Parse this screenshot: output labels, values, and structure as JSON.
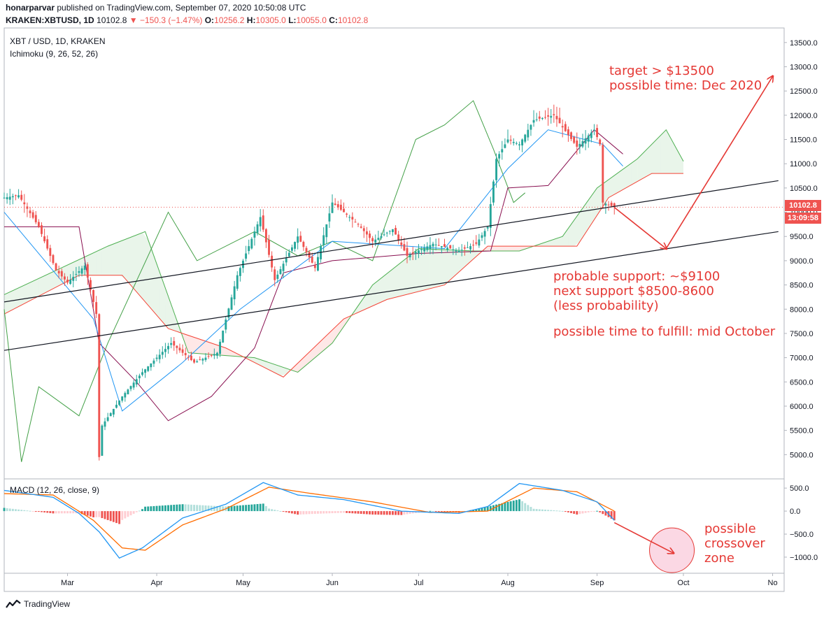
{
  "header": {
    "author": "honarparvar",
    "published": "published on TradingView.com, September 07, 2020 10:50:08 UTC",
    "symbol": "KRAKEN:XBTUSD, 1D",
    "last": "10102.8",
    "change": "▼ −150.3 (−1.47%)",
    "o_label": "O:",
    "o": "10256.2",
    "h_label": "H:",
    "h": "10305.0",
    "l_label": "L:",
    "l": "10055.0",
    "c_label": "C:",
    "c": "10102.8"
  },
  "legend": {
    "pair": "XBT / USD, 1D, KRAKEN",
    "ichimoku": "Ichimoku (9, 26, 52, 26)",
    "macd": "MACD (12, 26, close, 9)"
  },
  "price_badge": "10102.8",
  "time_badge": "13:09:58",
  "footer": {
    "logo_icon": "tradingview-logo-icon",
    "brand": "TradingView"
  },
  "notes": {
    "target_1": "target > $13500",
    "target_2": "possible time: Dec 2020",
    "support_1": "probable support: ~$9100",
    "support_2": "next support $8500-8600",
    "support_3": "(less probability)",
    "time_fulfill": "possible time to fulfill: mid October",
    "crossover_1": "possible",
    "crossover_2": "crossover",
    "crossover_3": "zone"
  },
  "colors": {
    "bull": "#26a69a",
    "bear": "#ef5350",
    "tenkan": "#2196f3",
    "kijun": "#880e4f",
    "chikou": "#43a047",
    "span_a": "#4caf50",
    "span_b": "#f44336",
    "macd": "#2196f3",
    "signal": "#ff6d00",
    "annotation": "#e53935"
  },
  "chart_data": {
    "type": "candlestick",
    "price_axis": {
      "ylim": [
        4500,
        13800
      ],
      "ticks": [
        5000,
        5500,
        6000,
        6500,
        7000,
        7500,
        8000,
        8500,
        9000,
        9500,
        10000,
        10500,
        11000,
        11500,
        12000,
        12500,
        13000,
        13500
      ],
      "tick_labels": [
        "5000.0",
        "5500.0",
        "6000.0",
        "6500.0",
        "7000.0",
        "7500.0",
        "8000.0",
        "8500.0",
        "9000.0",
        "9500.0",
        "10000.0",
        "10500.0",
        "11000.0",
        "11500.0",
        "12000.0",
        "12500.0",
        "13000.0",
        "13500.0"
      ]
    },
    "macd_axis": {
      "ylim": [
        -1350,
        700
      ],
      "ticks": [
        500,
        0,
        -500,
        -1000
      ],
      "tick_labels": [
        "500.0",
        "0.0",
        "−500.0",
        "−1000.0"
      ]
    },
    "x_axis": {
      "start": "2020-02-08",
      "end": "2020-11-05",
      "ticks": [
        {
          "date": "2020-03-01",
          "label": "Mar"
        },
        {
          "date": "2020-04-01",
          "label": "Apr"
        },
        {
          "date": "2020-05-01",
          "label": "May"
        },
        {
          "date": "2020-06-01",
          "label": "Jun"
        },
        {
          "date": "2020-07-01",
          "label": "Jul"
        },
        {
          "date": "2020-08-01",
          "label": "Aug"
        },
        {
          "date": "2020-09-01",
          "label": "Sep"
        },
        {
          "date": "2020-10-01",
          "label": "Oct"
        },
        {
          "date": "2020-11-01",
          "label": "No"
        }
      ]
    },
    "price_keypoints": [
      [
        "2020-02-08",
        10300
      ],
      [
        "2020-02-13",
        10350
      ],
      [
        "2020-02-20",
        9700
      ],
      [
        "2020-02-26",
        8800
      ],
      [
        "2020-03-01",
        8550
      ],
      [
        "2020-03-07",
        8900
      ],
      [
        "2020-03-11",
        7900
      ],
      [
        "2020-03-12",
        4950
      ],
      [
        "2020-03-13",
        5600
      ],
      [
        "2020-03-20",
        6200
      ],
      [
        "2020-03-27",
        6700
      ],
      [
        "2020-04-06",
        7300
      ],
      [
        "2020-04-14",
        6900
      ],
      [
        "2020-04-22",
        7100
      ],
      [
        "2020-04-29",
        8700
      ],
      [
        "2020-05-07",
        9900
      ],
      [
        "2020-05-12",
        8600
      ],
      [
        "2020-05-20",
        9500
      ],
      [
        "2020-05-26",
        8850
      ],
      [
        "2020-06-01",
        10200
      ],
      [
        "2020-06-10",
        9750
      ],
      [
        "2020-06-15",
        9400
      ],
      [
        "2020-06-22",
        9650
      ],
      [
        "2020-06-27",
        9100
      ],
      [
        "2020-07-06",
        9350
      ],
      [
        "2020-07-15",
        9200
      ],
      [
        "2020-07-21",
        9350
      ],
      [
        "2020-07-25",
        9700
      ],
      [
        "2020-07-28",
        11100
      ],
      [
        "2020-08-01",
        11500
      ],
      [
        "2020-08-05",
        11400
      ],
      [
        "2020-08-10",
        11900
      ],
      [
        "2020-08-17",
        12000
      ],
      [
        "2020-08-20",
        11750
      ],
      [
        "2020-08-25",
        11350
      ],
      [
        "2020-08-31",
        11700
      ],
      [
        "2020-09-02",
        11400
      ],
      [
        "2020-09-03",
        10200
      ],
      [
        "2020-09-07",
        10102.8
      ]
    ],
    "ichimoku_keypoints": {
      "tenkan": [
        [
          "2020-02-08",
          10000
        ],
        [
          "2020-03-10",
          7800
        ],
        [
          "2020-03-20",
          5900
        ],
        [
          "2020-04-10",
          6900
        ],
        [
          "2020-04-30",
          8000
        ],
        [
          "2020-06-01",
          9400
        ],
        [
          "2020-07-10",
          9250
        ],
        [
          "2020-08-01",
          10900
        ],
        [
          "2020-08-15",
          11700
        ],
        [
          "2020-09-03",
          11400
        ],
        [
          "2020-09-10",
          10950
        ]
      ],
      "kijun": [
        [
          "2020-02-08",
          9700
        ],
        [
          "2020-03-05",
          9700
        ],
        [
          "2020-03-12",
          7300
        ],
        [
          "2020-03-25",
          6500
        ],
        [
          "2020-04-05",
          5700
        ],
        [
          "2020-04-20",
          6200
        ],
        [
          "2020-05-05",
          7200
        ],
        [
          "2020-05-15",
          8750
        ],
        [
          "2020-06-01",
          9000
        ],
        [
          "2020-07-01",
          9150
        ],
        [
          "2020-07-26",
          9200
        ],
        [
          "2020-08-01",
          10500
        ],
        [
          "2020-08-15",
          10550
        ],
        [
          "2020-08-31",
          11700
        ],
        [
          "2020-09-10",
          11200
        ]
      ],
      "chikou": [
        [
          "2020-02-08",
          8000
        ],
        [
          "2020-02-14",
          4850
        ],
        [
          "2020-02-20",
          6400
        ],
        [
          "2020-03-05",
          5800
        ],
        [
          "2020-03-15",
          7300
        ],
        [
          "2020-04-05",
          10000
        ],
        [
          "2020-04-15",
          9000
        ],
        [
          "2020-05-05",
          9600
        ],
        [
          "2020-05-20",
          9100
        ],
        [
          "2020-06-01",
          9400
        ],
        [
          "2020-06-15",
          9000
        ],
        [
          "2020-06-30",
          11500
        ],
        [
          "2020-07-10",
          11800
        ],
        [
          "2020-07-20",
          12300
        ],
        [
          "2020-07-27",
          11300
        ],
        [
          "2020-08-03",
          10200
        ],
        [
          "2020-08-07",
          10400
        ]
      ],
      "span_a": [
        [
          "2020-02-08",
          8300
        ],
        [
          "2020-03-15",
          9300
        ],
        [
          "2020-03-28",
          9600
        ],
        [
          "2020-04-12",
          7100
        ],
        [
          "2020-05-05",
          7000
        ],
        [
          "2020-05-20",
          6700
        ],
        [
          "2020-06-01",
          7300
        ],
        [
          "2020-06-15",
          8500
        ],
        [
          "2020-07-01",
          9250
        ],
        [
          "2020-07-20",
          9200
        ],
        [
          "2020-08-05",
          9200
        ],
        [
          "2020-08-20",
          9500
        ],
        [
          "2020-09-01",
          10500
        ],
        [
          "2020-09-15",
          11100
        ],
        [
          "2020-09-25",
          11700
        ],
        [
          "2020-10-01",
          11050
        ]
      ],
      "span_b": [
        [
          "2020-02-08",
          7900
        ],
        [
          "2020-03-05",
          8700
        ],
        [
          "2020-03-20",
          8700
        ],
        [
          "2020-04-05",
          7600
        ],
        [
          "2020-04-25",
          7200
        ],
        [
          "2020-05-15",
          6600
        ],
        [
          "2020-06-05",
          7800
        ],
        [
          "2020-06-20",
          8200
        ],
        [
          "2020-07-10",
          8500
        ],
        [
          "2020-07-25",
          9300
        ],
        [
          "2020-08-25",
          9300
        ],
        [
          "2020-09-05",
          10300
        ],
        [
          "2020-09-20",
          10800
        ],
        [
          "2020-10-01",
          10800
        ]
      ]
    },
    "trendlines": [
      {
        "name": "upper",
        "points": [
          [
            "2020-02-08",
            8150
          ],
          [
            "2020-11-03",
            10650
          ]
        ]
      },
      {
        "name": "lower",
        "points": [
          [
            "2020-02-08",
            7150
          ],
          [
            "2020-11-03",
            9600
          ]
        ]
      }
    ],
    "projection": [
      [
        "2020-09-07",
        10100
      ],
      [
        "2020-09-25",
        9250
      ],
      [
        "2020-11-01",
        12800
      ]
    ],
    "macd": {
      "macd_keypoints": [
        [
          "2020-02-08",
          450
        ],
        [
          "2020-02-25",
          300
        ],
        [
          "2020-03-05",
          -50
        ],
        [
          "2020-03-12",
          -450
        ],
        [
          "2020-03-19",
          -1020
        ],
        [
          "2020-03-27",
          -800
        ],
        [
          "2020-04-10",
          -150
        ],
        [
          "2020-04-25",
          150
        ],
        [
          "2020-05-08",
          620
        ],
        [
          "2020-05-20",
          350
        ],
        [
          "2020-06-05",
          250
        ],
        [
          "2020-06-25",
          0
        ],
        [
          "2020-07-15",
          -50
        ],
        [
          "2020-07-25",
          100
        ],
        [
          "2020-08-05",
          600
        ],
        [
          "2020-08-20",
          450
        ],
        [
          "2020-09-01",
          200
        ],
        [
          "2020-09-07",
          -200
        ]
      ],
      "signal_keypoints": [
        [
          "2020-02-08",
          380
        ],
        [
          "2020-02-25",
          350
        ],
        [
          "2020-03-10",
          -200
        ],
        [
          "2020-03-20",
          -800
        ],
        [
          "2020-03-28",
          -850
        ],
        [
          "2020-04-10",
          -300
        ],
        [
          "2020-04-25",
          50
        ],
        [
          "2020-05-10",
          520
        ],
        [
          "2020-05-25",
          380
        ],
        [
          "2020-06-15",
          200
        ],
        [
          "2020-07-05",
          -30
        ],
        [
          "2020-07-25",
          0
        ],
        [
          "2020-08-10",
          500
        ],
        [
          "2020-08-25",
          420
        ],
        [
          "2020-09-07",
          0
        ]
      ]
    },
    "last_price": 10102.8
  }
}
